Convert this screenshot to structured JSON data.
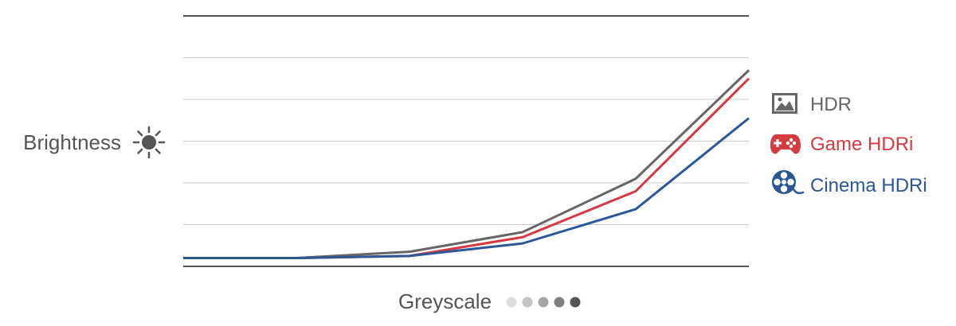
{
  "chart_data": {
    "type": "line",
    "title": "",
    "xlabel": "Greyscale",
    "ylabel": "Brightness",
    "x": [
      0,
      1,
      2,
      3,
      4,
      5
    ],
    "xlim": [
      0,
      5
    ],
    "ylim": [
      0,
      6
    ],
    "grid": true,
    "legend_position": "right",
    "series": [
      {
        "name": "HDR",
        "color": "#666666",
        "icon": "image-icon",
        "values": [
          0.2,
          0.2,
          0.35,
          0.82,
          2.1,
          4.7
        ]
      },
      {
        "name": "Game HDRi",
        "color": "#d43a3f",
        "icon": "gamepad-icon",
        "values": [
          0.2,
          0.2,
          0.25,
          0.7,
          1.8,
          4.5
        ]
      },
      {
        "name": "Cinema HDRi",
        "color": "#2b5796",
        "icon": "film-reel-icon",
        "values": [
          0.2,
          0.2,
          0.25,
          0.55,
          1.37,
          3.55
        ]
      }
    ],
    "greyscale_dots": [
      "#dddddd",
      "#c4c4c4",
      "#a6a6a6",
      "#7f7f7f",
      "#555555"
    ]
  }
}
